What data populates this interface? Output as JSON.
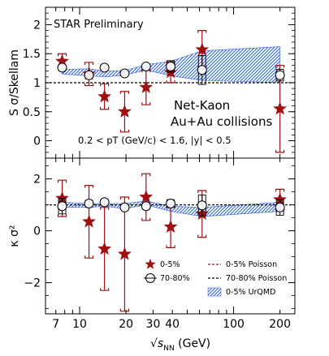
{
  "chart_data": [
    {
      "type": "scatter",
      "title": "",
      "annotations": [
        "STAR Preliminary",
        "Net-Kaon",
        "Au+Au collisions",
        "0.2 < pT (GeV/c) < 1.6, |y| < 0.5"
      ],
      "ylabel": "S σ/Skellam",
      "xscale": "log",
      "xlim": [
        6,
        250
      ],
      "ylim": [
        -0.3,
        2.3
      ],
      "yticks": [
        "0",
        "0.5",
        "1",
        "1.5",
        "2"
      ],
      "reference_line": 1,
      "series": [
        {
          "name": "0-5%",
          "marker": "star",
          "color": "#a01010",
          "x": [
            7.7,
            11.5,
            14.5,
            19.6,
            27,
            39,
            62.4,
            200
          ],
          "y": [
            1.37,
            1.15,
            0.76,
            0.5,
            0.92,
            1.18,
            1.57,
            0.55
          ],
          "err": [
            0.13,
            0.2,
            0.22,
            0.35,
            0.3,
            0.18,
            0.33,
            0.75
          ]
        },
        {
          "name": "70-80%",
          "marker": "open-circle",
          "color": "#000000",
          "x": [
            7.7,
            11.5,
            14.5,
            19.6,
            27,
            39,
            62.4,
            200
          ],
          "y": [
            1.26,
            1.13,
            1.26,
            1.16,
            1.28,
            1.28,
            1.22,
            1.13
          ],
          "err": [
            0.05,
            0.03,
            0.03,
            0.03,
            0.03,
            0.1,
            0.25,
            0.1
          ]
        },
        {
          "name": "0-5% UrQMD",
          "type": "band",
          "color": "#3a6fd8",
          "x": [
            7.7,
            11.5,
            14.5,
            19.6,
            27,
            39,
            62.4,
            200
          ],
          "low": [
            1.15,
            1.12,
            1.1,
            1.13,
            1.22,
            1.12,
            1.04,
            1.0
          ],
          "high": [
            1.23,
            1.24,
            1.2,
            1.21,
            1.31,
            1.37,
            1.55,
            1.62
          ]
        }
      ]
    },
    {
      "type": "scatter",
      "title": "",
      "xlabel": "√s_NN (GeV)",
      "ylabel": "κ σ²",
      "xscale": "log",
      "xlim": [
        6,
        250
      ],
      "ylim": [
        -3.2,
        2.8
      ],
      "yticks": [
        "−2",
        "0",
        "2"
      ],
      "xticks": [
        "7",
        "10",
        "20",
        "30",
        "40",
        "100",
        "200"
      ],
      "reference_line": 1,
      "series": [
        {
          "name": "0-5%",
          "marker": "star",
          "color": "#a01010",
          "x": [
            7.7,
            11.5,
            14.5,
            19.6,
            27,
            39,
            62.4,
            200
          ],
          "y": [
            1.25,
            0.35,
            -0.7,
            -0.9,
            1.3,
            0.15,
            0.65,
            1.2
          ],
          "err": [
            0.7,
            1.4,
            1.6,
            2.2,
            0.9,
            0.8,
            0.9,
            0.4
          ]
        },
        {
          "name": "70-80%",
          "marker": "open-circle",
          "color": "#000000",
          "x": [
            7.7,
            11.5,
            14.5,
            19.6,
            27,
            39,
            62.4,
            200
          ],
          "y": [
            0.95,
            1.05,
            1.1,
            0.9,
            0.95,
            1.05,
            0.98,
            0.9
          ],
          "err": [
            0.3,
            0.12,
            0.1,
            0.1,
            0.12,
            0.15,
            0.4,
            0.3
          ]
        },
        {
          "name": "0-5% UrQMD",
          "type": "band",
          "color": "#3a6fd8",
          "x": [
            7.7,
            11.5,
            14.5,
            19.6,
            27,
            39,
            62.4,
            200
          ],
          "low": [
            0.9,
            0.9,
            0.95,
            0.85,
            1.0,
            0.75,
            0.55,
            0.75
          ],
          "high": [
            1.1,
            1.05,
            1.05,
            1.05,
            1.15,
            0.95,
            0.9,
            1.1
          ]
        }
      ],
      "legend": {
        "placement": "bottom",
        "entries": [
          "0-5%",
          "70-80%",
          "0-5% Poisson",
          "70-80% Poisson",
          "0-5% UrQMD"
        ]
      }
    }
  ]
}
